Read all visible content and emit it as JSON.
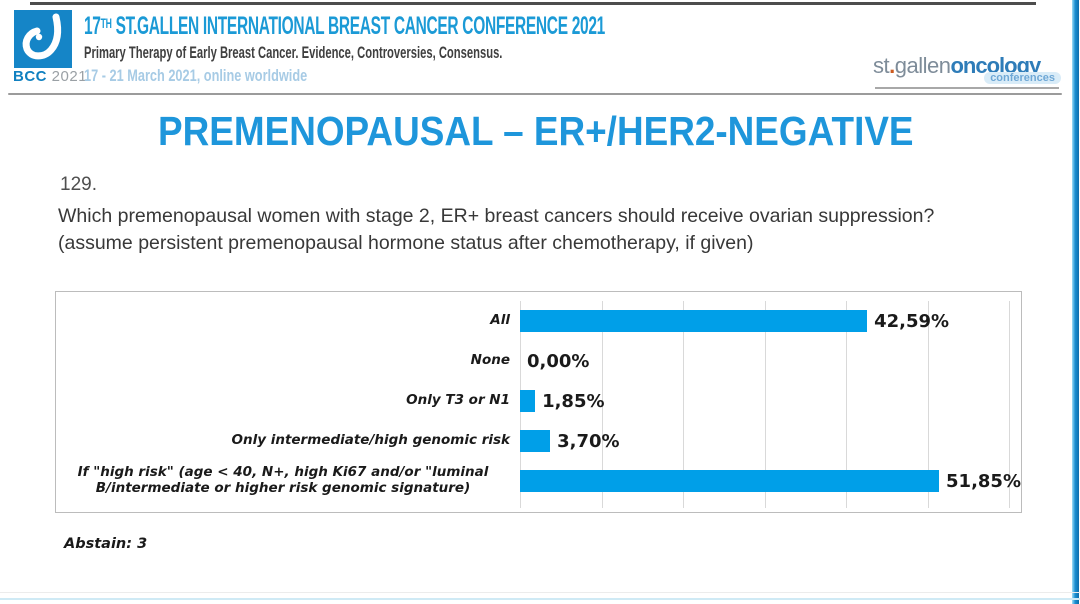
{
  "header": {
    "logo": {
      "bcc": "BCC",
      "year": "2021"
    },
    "title_num": "17",
    "title_sup": "TH",
    "title_rest": " ST.GALLEN INTERNATIONAL BREAST CANCER CONFERENCE 2021",
    "subtitle": "Primary Therapy of Early Breast Cancer. Evidence, Controversies, Consensus.",
    "dates": "17 - 21 March 2021, online worldwide",
    "right_logo": {
      "part1": "st",
      "dot": ".",
      "part2": "gallen",
      "part3": "oncology",
      "part4": "conferences"
    }
  },
  "slide": {
    "title": "PREMENOPAUSAL – ER+/HER2-NEGATIVE",
    "question_number": "129.",
    "question_text": "Which premenopausal women with stage 2, ER+ breast cancers should receive ovarian suppression? (assume persistent premenopausal hormone status after chemotherapy, if given)",
    "abstain": "Abstain: 3"
  },
  "chart_data": {
    "type": "bar",
    "orientation": "horizontal",
    "title": "",
    "xlabel": "",
    "ylabel": "",
    "categories": [
      "All",
      "None",
      "Only T3 or N1",
      "Only intermediate/high genomic risk",
      "If \"high risk\" (age < 40, N+, high Ki67 and/or \"luminal\nB/intermediate or higher risk genomic signature)"
    ],
    "values": [
      42.59,
      0.0,
      1.85,
      3.7,
      51.85
    ],
    "value_labels": [
      "42,59%",
      "0,00%",
      "1,85%",
      "3,70%",
      "51,85%"
    ],
    "xlim": [
      0,
      60
    ],
    "gridline_interval": 10,
    "grid": true,
    "legend": false,
    "bar_color": "#009FE8"
  },
  "colors": {
    "accent_blue": "#1E96DB",
    "header_blue": "#1B9AD6",
    "bar_blue": "#009FE8",
    "date_blue": "#A7CBE5",
    "logo_blue": "#1585C7",
    "gridline": "#D9D9D9"
  }
}
